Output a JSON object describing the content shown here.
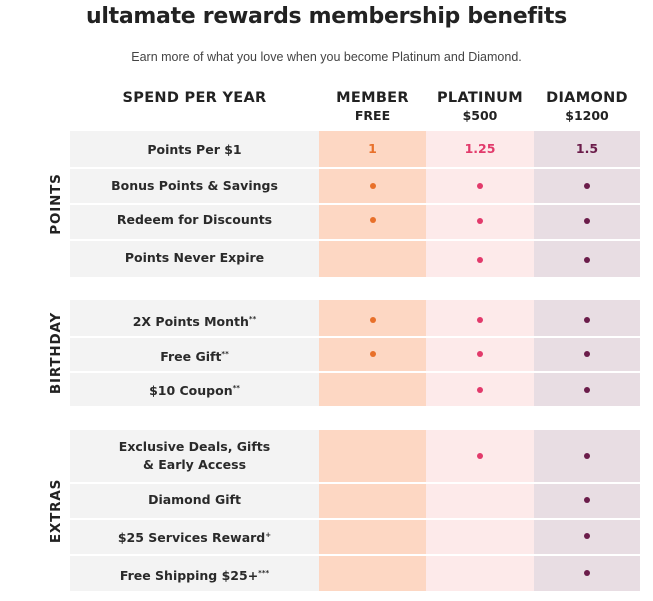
{
  "title": "ultamate rewards membership benefits",
  "subtitle": "Earn more of what you love when you become Platinum and Diamond.",
  "columns": {
    "spend_label": "SPEND PER YEAR",
    "member": {
      "name": "MEMBER",
      "price": "FREE"
    },
    "platinum": {
      "name": "PLATINUM",
      "price": "$500"
    },
    "diamond": {
      "name": "DIAMOND",
      "price": "$1200"
    }
  },
  "sections": [
    {
      "name": "POINTS",
      "rows": [
        {
          "label": "Points Per $1",
          "member": "1",
          "platinum": "1.25",
          "diamond": "1.5"
        },
        {
          "label": "Bonus Points & Savings",
          "member_dot": true,
          "platinum_dot": true,
          "diamond_dot": true
        },
        {
          "label": "Redeem for Discounts",
          "member_dot": true,
          "platinum_dot": true,
          "diamond_dot": true
        },
        {
          "label": "Points Never Expire",
          "member_dot": false,
          "platinum_dot": true,
          "diamond_dot": true
        }
      ]
    },
    {
      "name": "BIRTHDAY",
      "rows": [
        {
          "label": "2X Points Month",
          "sup": "**",
          "member_dot": true,
          "platinum_dot": true,
          "diamond_dot": true
        },
        {
          "label": "Free Gift",
          "sup": "**",
          "member_dot": true,
          "platinum_dot": true,
          "diamond_dot": true
        },
        {
          "label": "$10 Coupon",
          "sup": "**",
          "member_dot": false,
          "platinum_dot": true,
          "diamond_dot": true
        }
      ]
    },
    {
      "name": "EXTRAS",
      "rows": [
        {
          "label_line1": "Exclusive Deals, Gifts",
          "label_line2": "& Early Access",
          "member_dot": false,
          "platinum_dot": true,
          "diamond_dot": true
        },
        {
          "label": "Diamond Gift",
          "member_dot": false,
          "platinum_dot": false,
          "diamond_dot": true
        },
        {
          "label": "$25 Services Reward",
          "sup": "+",
          "member_dot": false,
          "platinum_dot": false,
          "diamond_dot": true
        },
        {
          "label": "Free Shipping $25+",
          "sup": "***",
          "member_dot": false,
          "platinum_dot": false,
          "diamond_dot": true
        }
      ]
    }
  ],
  "colors": {
    "member_bg": "#fdd7c3",
    "platinum_bg": "#fdeaea",
    "diamond_bg": "#e8dde3",
    "member_accent": "#e8702a",
    "platinum_accent": "#e23a6b",
    "diamond_accent": "#6b1c4a"
  }
}
